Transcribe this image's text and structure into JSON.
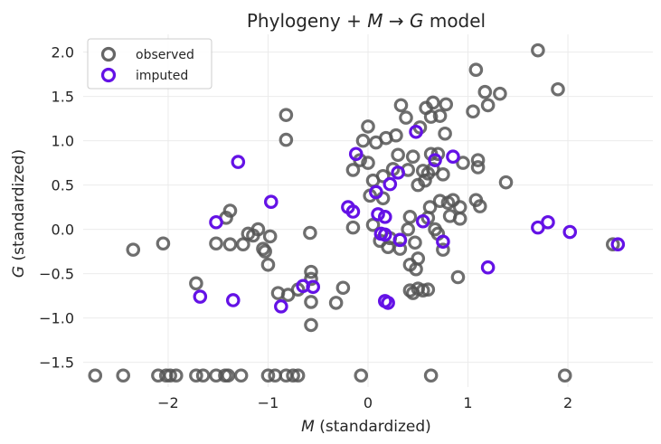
{
  "chart_data": {
    "type": "scatter",
    "title": "Phylogeny + M → G model",
    "title_parts": [
      "Phylogeny + ",
      "M",
      " → ",
      "G",
      " model"
    ],
    "xlabel": "M (standardized)",
    "xlabel_parts": [
      "M",
      " (standardized)"
    ],
    "ylabel": "G (standardized)",
    "ylabel_parts": [
      "G",
      " (standardized)"
    ],
    "xlim": [
      -2.85,
      2.85
    ],
    "ylim": [
      -1.78,
      2.2
    ],
    "xticks": [
      -2,
      -1,
      0,
      1,
      2
    ],
    "yticks": [
      -1.5,
      -1.0,
      -0.5,
      0.0,
      0.5,
      1.0,
      1.5,
      2.0
    ],
    "xtick_labels": [
      "−2",
      "−1",
      "0",
      "1",
      "2"
    ],
    "ytick_labels": [
      "−1.5",
      "−1.0",
      "−0.5",
      "0.0",
      "0.5",
      "1.0",
      "1.5",
      "2.0"
    ],
    "grid": true,
    "legend": {
      "position": "top-left",
      "entries": [
        "observed",
        "imputed"
      ]
    },
    "series": [
      {
        "name": "observed",
        "color": "#555555",
        "points": [
          [
            -2.73,
            -1.65
          ],
          [
            -2.45,
            -1.65
          ],
          [
            -2.1,
            -1.65
          ],
          [
            -2.02,
            -1.65
          ],
          [
            -1.98,
            -1.65
          ],
          [
            -1.92,
            -1.65
          ],
          [
            -1.72,
            -1.65
          ],
          [
            -1.65,
            -1.65
          ],
          [
            -1.52,
            -1.65
          ],
          [
            -1.43,
            -1.65
          ],
          [
            -1.4,
            -1.65
          ],
          [
            -1.27,
            -1.65
          ],
          [
            -1.0,
            -1.65
          ],
          [
            -0.93,
            -1.65
          ],
          [
            -0.82,
            -1.65
          ],
          [
            -0.75,
            -1.65
          ],
          [
            -0.7,
            -1.65
          ],
          [
            -0.07,
            -1.65
          ],
          [
            0.63,
            -1.65
          ],
          [
            1.97,
            -1.65
          ],
          [
            -2.35,
            -0.23
          ],
          [
            -2.05,
            -0.16
          ],
          [
            -1.72,
            -0.61
          ],
          [
            -1.52,
            -0.16
          ],
          [
            -1.42,
            0.13
          ],
          [
            -1.38,
            0.21
          ],
          [
            -1.38,
            -0.17
          ],
          [
            -1.25,
            -0.17
          ],
          [
            -1.2,
            -0.05
          ],
          [
            -1.15,
            -0.07
          ],
          [
            -1.1,
            0.0
          ],
          [
            -1.05,
            -0.22
          ],
          [
            -1.03,
            -0.25
          ],
          [
            -1.0,
            -0.4
          ],
          [
            -0.98,
            -0.08
          ],
          [
            -0.9,
            -0.72
          ],
          [
            -0.82,
            1.01
          ],
          [
            -0.82,
            1.29
          ],
          [
            -0.8,
            -0.74
          ],
          [
            -0.7,
            -0.68
          ],
          [
            -0.58,
            -0.04
          ],
          [
            -0.57,
            -0.48
          ],
          [
            -0.57,
            -0.56
          ],
          [
            -0.57,
            -0.82
          ],
          [
            -0.57,
            -1.08
          ],
          [
            -0.32,
            -0.83
          ],
          [
            -0.25,
            -0.66
          ],
          [
            -0.15,
            0.67
          ],
          [
            -0.15,
            0.02
          ],
          [
            -0.08,
            0.78
          ],
          [
            -0.05,
            1.0
          ],
          [
            0.0,
            1.16
          ],
          [
            0.0,
            0.75
          ],
          [
            0.02,
            0.38
          ],
          [
            0.05,
            0.55
          ],
          [
            0.05,
            0.05
          ],
          [
            0.08,
            0.98
          ],
          [
            0.12,
            -0.13
          ],
          [
            0.15,
            0.35
          ],
          [
            0.15,
            0.6
          ],
          [
            0.18,
            1.03
          ],
          [
            0.2,
            -0.2
          ],
          [
            0.22,
            -0.1
          ],
          [
            0.25,
            0.68
          ],
          [
            0.28,
            1.06
          ],
          [
            0.3,
            0.84
          ],
          [
            0.32,
            -0.22
          ],
          [
            0.32,
            -0.12
          ],
          [
            0.33,
            1.4
          ],
          [
            0.38,
            1.26
          ],
          [
            0.4,
            0.67
          ],
          [
            0.4,
            0.0
          ],
          [
            0.42,
            0.14
          ],
          [
            0.42,
            -0.4
          ],
          [
            0.42,
            -0.69
          ],
          [
            0.45,
            0.82
          ],
          [
            0.45,
            -0.72
          ],
          [
            0.47,
            -0.15
          ],
          [
            0.48,
            -0.45
          ],
          [
            0.5,
            0.5
          ],
          [
            0.5,
            -0.67
          ],
          [
            0.5,
            -0.33
          ],
          [
            0.52,
            1.15
          ],
          [
            0.55,
            0.66
          ],
          [
            0.55,
            -0.69
          ],
          [
            0.57,
            0.55
          ],
          [
            0.58,
            1.37
          ],
          [
            0.6,
            0.63
          ],
          [
            0.6,
            0.13
          ],
          [
            0.6,
            -0.68
          ],
          [
            0.62,
            0.25
          ],
          [
            0.63,
            1.27
          ],
          [
            0.63,
            0.85
          ],
          [
            0.65,
            1.43
          ],
          [
            0.65,
            0.68
          ],
          [
            0.67,
            0.0
          ],
          [
            0.7,
            0.85
          ],
          [
            0.7,
            -0.05
          ],
          [
            0.72,
            1.28
          ],
          [
            0.72,
            0.32
          ],
          [
            0.75,
            0.62
          ],
          [
            0.75,
            -0.23
          ],
          [
            0.77,
            1.08
          ],
          [
            0.78,
            1.41
          ],
          [
            0.8,
            0.3
          ],
          [
            0.82,
            0.15
          ],
          [
            0.85,
            0.33
          ],
          [
            0.9,
            -0.54
          ],
          [
            0.92,
            0.25
          ],
          [
            0.92,
            0.12
          ],
          [
            0.95,
            0.75
          ],
          [
            1.05,
            1.33
          ],
          [
            1.08,
            1.8
          ],
          [
            1.08,
            0.33
          ],
          [
            1.1,
            0.78
          ],
          [
            1.1,
            0.7
          ],
          [
            1.12,
            0.26
          ],
          [
            1.17,
            1.55
          ],
          [
            1.2,
            1.4
          ],
          [
            1.32,
            1.53
          ],
          [
            1.38,
            0.53
          ],
          [
            1.7,
            2.02
          ],
          [
            1.9,
            1.58
          ],
          [
            2.45,
            -0.17
          ]
        ]
      },
      {
        "name": "imputed",
        "color": "#6412e6",
        "points": [
          [
            -1.52,
            0.08
          ],
          [
            -1.68,
            -0.76
          ],
          [
            -1.35,
            -0.8
          ],
          [
            -1.3,
            0.76
          ],
          [
            -0.97,
            0.31
          ],
          [
            -0.87,
            -0.87
          ],
          [
            -0.65,
            -0.64
          ],
          [
            -0.55,
            -0.65
          ],
          [
            -0.2,
            0.25
          ],
          [
            -0.15,
            0.2
          ],
          [
            -0.12,
            0.85
          ],
          [
            0.08,
            0.42
          ],
          [
            0.1,
            0.17
          ],
          [
            0.13,
            -0.05
          ],
          [
            0.17,
            -0.06
          ],
          [
            0.17,
            0.14
          ],
          [
            0.17,
            -0.81
          ],
          [
            0.2,
            -0.83
          ],
          [
            0.22,
            0.51
          ],
          [
            0.3,
            0.64
          ],
          [
            0.32,
            -0.12
          ],
          [
            0.48,
            1.1
          ],
          [
            0.55,
            0.09
          ],
          [
            0.67,
            0.78
          ],
          [
            0.75,
            -0.14
          ],
          [
            0.85,
            0.82
          ],
          [
            1.2,
            -0.43
          ],
          [
            1.7,
            0.02
          ],
          [
            1.8,
            0.08
          ],
          [
            2.02,
            -0.03
          ],
          [
            2.5,
            -0.17
          ]
        ]
      }
    ]
  }
}
